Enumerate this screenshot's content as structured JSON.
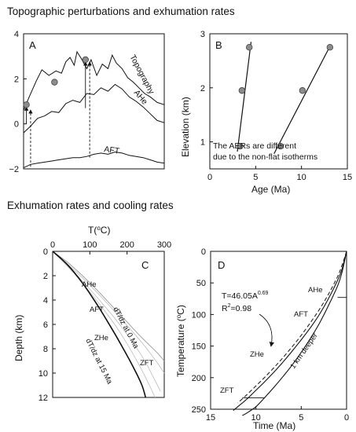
{
  "colors": {
    "ink": "#111111",
    "marker_fill": "#8c8c8c",
    "guide_gray": "#bbbbbb"
  },
  "titles": {
    "top": "Topographic perturbations and exhumation rates",
    "bottom": "Exhumation rates and cooling rates"
  },
  "chart_data": [
    {
      "panel": "A",
      "type": "line",
      "ylim": [
        -2,
        4
      ],
      "yticks": [
        "4",
        "2",
        "0",
        "−2"
      ],
      "ytick_values": [
        4,
        2,
        0,
        -2
      ],
      "xlim": [
        0,
        100
      ],
      "series": [
        {
          "name": "Topography",
          "x": [
            0,
            4,
            9,
            13,
            18,
            23,
            27,
            30,
            33,
            36,
            38,
            41,
            45,
            48,
            52,
            56,
            60,
            63,
            66,
            70,
            74,
            78,
            82,
            86,
            90,
            95,
            100
          ],
          "y": [
            0.6,
            1.2,
            1.9,
            2.4,
            2.15,
            2.35,
            2.25,
            2.75,
            2.95,
            2.6,
            3.2,
            2.9,
            2.45,
            2.85,
            2.15,
            2.65,
            2.45,
            3.05,
            2.7,
            2.45,
            2.05,
            1.85,
            1.6,
            1.35,
            1.2,
            0.95,
            0.85
          ]
        },
        {
          "name": "AHe",
          "x": [
            0,
            5,
            10,
            15,
            20,
            25,
            30,
            35,
            40,
            45,
            50,
            55,
            60,
            65,
            70,
            75,
            80,
            85,
            90,
            95,
            100
          ],
          "y": [
            -0.4,
            -0.1,
            0.25,
            0.35,
            0.55,
            0.5,
            0.9,
            1.05,
            0.95,
            1.35,
            1.3,
            1.6,
            1.45,
            1.75,
            1.55,
            1.2,
            1.0,
            0.75,
            0.45,
            0.15,
            0.05
          ]
        },
        {
          "name": "AFT",
          "x": [
            0,
            5,
            10,
            15,
            20,
            25,
            30,
            35,
            40,
            45,
            50,
            55,
            60,
            65,
            70,
            75,
            80,
            85,
            90,
            95,
            100
          ],
          "y": [
            -1.95,
            -1.8,
            -1.75,
            -1.7,
            -1.65,
            -1.6,
            -1.55,
            -1.5,
            -1.5,
            -1.45,
            -1.35,
            -1.3,
            -1.35,
            -1.25,
            -1.3,
            -1.4,
            -1.45,
            -1.5,
            -1.6,
            -1.7,
            -1.75
          ]
        }
      ],
      "samples": {
        "x": [
          2,
          22,
          44
        ],
        "y": [
          0.85,
          1.85,
          2.85
        ]
      },
      "arrows": [
        {
          "x": 2,
          "from": 0.0,
          "to": 0.85,
          "solid": true
        },
        {
          "x": 5,
          "from": -1.9,
          "to": 0.72,
          "solid": false
        },
        {
          "x": 44,
          "from": 0.7,
          "to": 2.85,
          "solid": true
        },
        {
          "x": 47,
          "from": -1.5,
          "to": 2.85,
          "solid": false
        }
      ]
    },
    {
      "panel": "B",
      "type": "scatter",
      "xlabel": "Age (Ma)",
      "ylabel": "Elevation (km)",
      "xlim": [
        0,
        15
      ],
      "ylim": [
        0.5,
        3
      ],
      "xticks": [
        0,
        5,
        10,
        15
      ],
      "yticks": [
        1,
        2,
        3
      ],
      "series": [
        {
          "x": [
            3.3,
            3.5,
            4.3
          ],
          "y": [
            0.92,
            1.95,
            2.75
          ],
          "fit": [
            [
              3.0,
              0.82
            ],
            [
              4.5,
              2.85
            ]
          ]
        },
        {
          "x": [
            7.7,
            10.1,
            13.1
          ],
          "y": [
            0.92,
            1.95,
            2.75
          ],
          "fit": [
            [
              7.0,
              0.78
            ],
            [
              13.2,
              2.8
            ]
          ]
        }
      ],
      "annotation": [
        "The AERs are different",
        "due to the non-flat isotherms"
      ]
    },
    {
      "panel": "C",
      "type": "line",
      "xlabel": "T(°C)",
      "ylabel": "Depth (km)",
      "xlim": [
        0,
        300
      ],
      "ylim": [
        0,
        12
      ],
      "xticks": [
        0,
        100,
        200,
        300
      ],
      "yticks": [
        0,
        2,
        4,
        6,
        8,
        10,
        12
      ],
      "geotherm_0Ma": {
        "T": [
          0,
          40,
          80,
          120,
          160,
          200,
          240,
          280,
          300
        ],
        "z": [
          0,
          0.9,
          2.0,
          3.2,
          4.5,
          5.8,
          7.1,
          8.3,
          9.0
        ]
      },
      "geotherm_15Ma": {
        "T": [
          0,
          40,
          80,
          120,
          160,
          190,
          220,
          240,
          250
        ],
        "z": [
          0,
          1.1,
          2.6,
          4.4,
          6.4,
          8.0,
          9.7,
          11.0,
          12.0
        ]
      },
      "intermediate_geotherms": [
        {
          "T": [
            0,
            60,
            120,
            180,
            240,
            280,
            300
          ],
          "z": [
            0,
            1.6,
            3.4,
            5.4,
            7.5,
            9.1,
            10.0
          ]
        },
        {
          "T": [
            0,
            60,
            120,
            180,
            240,
            270,
            290
          ],
          "z": [
            0,
            1.8,
            3.8,
            6.0,
            8.6,
            10.3,
            11.5
          ]
        },
        {
          "T": [
            0,
            60,
            120,
            180,
            230,
            260,
            275
          ],
          "z": [
            0,
            1.9,
            4.1,
            6.6,
            9.2,
            11.0,
            12.0
          ]
        }
      ],
      "labels": {
        "AHe": "AHe",
        "AFT": "AFT",
        "ZHe": "ZHe",
        "ZFT": "ZFT",
        "g0": "dT/dz at 0 Ma",
        "g15": "dT/dz at 15 Ma"
      }
    },
    {
      "panel": "D",
      "type": "line",
      "xlabel": "Time (Ma)",
      "ylabel": "Temperature (°C)",
      "xlim": [
        15,
        0
      ],
      "ylim": [
        0,
        250
      ],
      "xticks": [
        15,
        10,
        5,
        0
      ],
      "yticks": [
        0,
        50,
        100,
        150,
        200,
        250
      ],
      "fit_curve": {
        "t": [
          0,
          0.5,
          1,
          2,
          3,
          4,
          5,
          6,
          7,
          8,
          9,
          10,
          11,
          12,
          12.5
        ],
        "T": [
          0,
          28,
          46,
          75,
          100,
          121,
          140,
          158,
          175,
          191,
          206,
          220,
          234,
          246,
          252
        ]
      },
      "dashed_curve": {
        "t": [
          0,
          0.5,
          1,
          2,
          3,
          4,
          5,
          6,
          7,
          8,
          9,
          10,
          11,
          12
        ],
        "T": [
          0,
          22,
          40,
          68,
          92,
          113,
          133,
          151,
          168,
          184,
          199,
          213,
          227,
          240
        ]
      },
      "deeper_curve": {
        "t": [
          0,
          0.5,
          1,
          2,
          3,
          4,
          5,
          6,
          7,
          8,
          9,
          10,
          11,
          11.5
        ],
        "T": [
          0,
          33,
          55,
          86,
          114,
          138,
          160,
          180,
          198,
          215,
          231,
          246,
          256,
          260
        ]
      },
      "equation": [
        "T=46.05A",
        "0.69",
        "R",
        "2",
        "=0.98"
      ],
      "labels": {
        "AHe": "AHe",
        "AFT": "AFT",
        "ZHe": "ZHe",
        "ZFT": "ZFT",
        "deeper": "1 km deeper"
      }
    }
  ]
}
